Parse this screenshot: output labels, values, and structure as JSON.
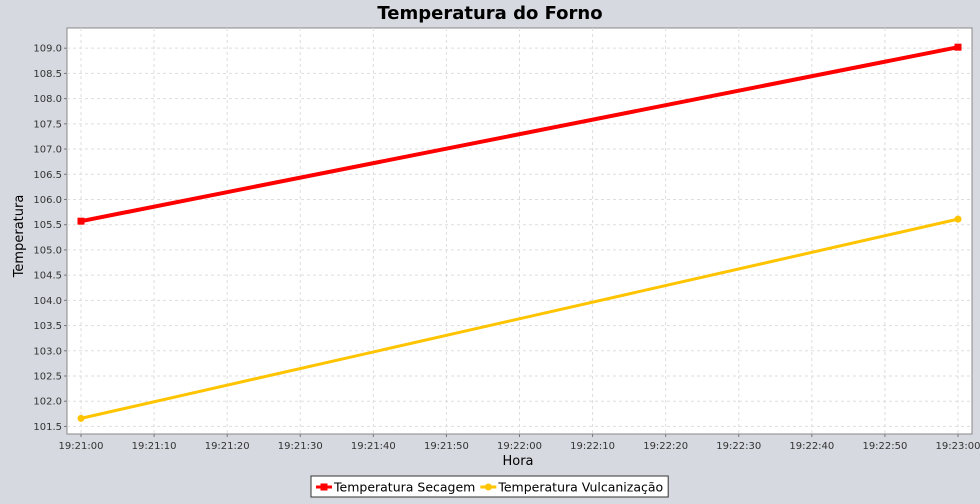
{
  "chart_data": {
    "type": "line",
    "title": "Temperatura do Forno",
    "xlabel": "Hora",
    "ylabel": "Temperatura",
    "x_ticks": [
      "19:21:00",
      "19:21:10",
      "19:21:20",
      "19:21:30",
      "19:21:40",
      "19:21:50",
      "19:22:00",
      "19:22:10",
      "19:22:20",
      "19:22:30",
      "19:22:40",
      "19:22:50",
      "19:23:00"
    ],
    "y_ticks": [
      "101.5",
      "102.0",
      "102.5",
      "103.0",
      "103.5",
      "104.0",
      "104.5",
      "105.0",
      "105.5",
      "106.0",
      "106.5",
      "107.0",
      "107.5",
      "108.0",
      "108.5",
      "109.0"
    ],
    "xlim": [
      "19:21:00",
      "19:23:00"
    ],
    "ylim": [
      101.35,
      109.4
    ],
    "grid": true,
    "legend_position": "bottom",
    "series": [
      {
        "name": "Temperatura Secagem",
        "color": "#ff0000",
        "marker": "square",
        "points": [
          {
            "x": "19:21:00",
            "y": 105.57
          },
          {
            "x": "19:23:00",
            "y": 109.02
          }
        ]
      },
      {
        "name": "Temperatura Vulcanização",
        "color": "#ffc400",
        "marker": "circle",
        "points": [
          {
            "x": "19:21:00",
            "y": 101.66
          },
          {
            "x": "19:23:00",
            "y": 105.61
          }
        ]
      }
    ]
  }
}
